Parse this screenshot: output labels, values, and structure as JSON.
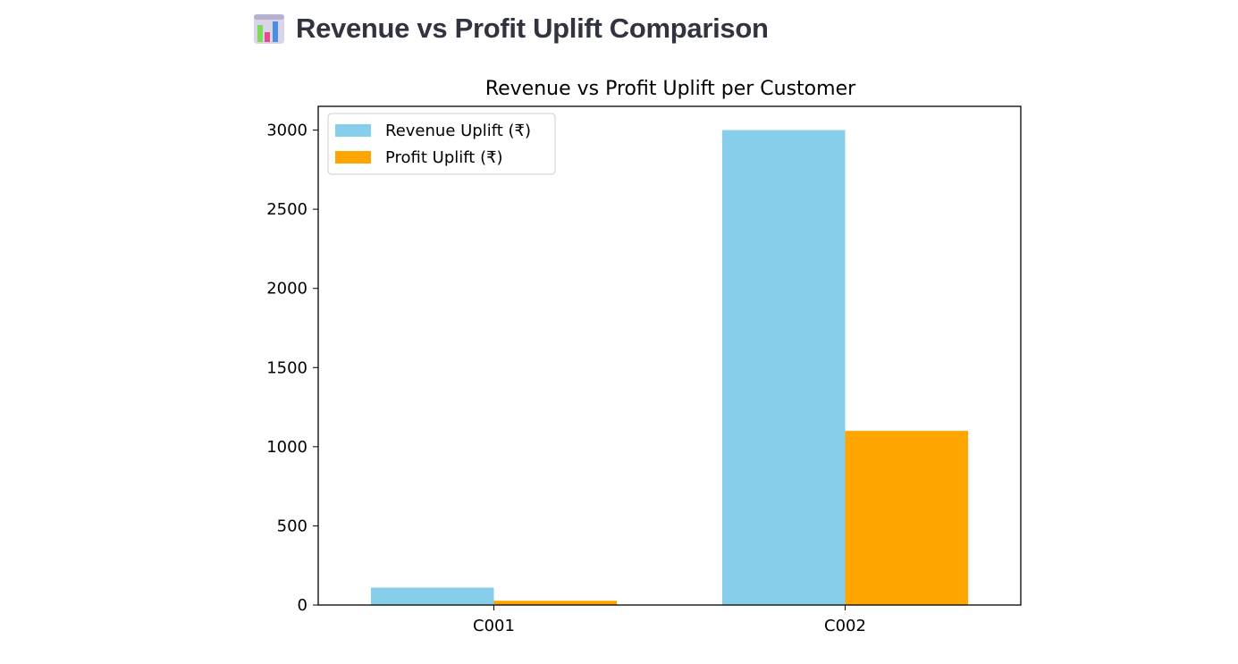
{
  "header": {
    "icon": "bar-chart-icon",
    "title": "Revenue vs Profit Uplift Comparison"
  },
  "chart_data": {
    "type": "bar",
    "title": "Revenue vs Profit Uplift per Customer",
    "xlabel": "",
    "ylabel": "",
    "categories": [
      "C001",
      "C002"
    ],
    "series": [
      {
        "name": "Revenue Uplift (₹)",
        "color": "#87ceeb",
        "values": [
          110,
          3000
        ]
      },
      {
        "name": "Profit Uplift (₹)",
        "color": "#ffa500",
        "values": [
          27,
          1100
        ]
      }
    ],
    "ylim": [
      0,
      3150
    ],
    "yticks": [
      0,
      500,
      1000,
      1500,
      2000,
      2500,
      3000
    ],
    "grid": false,
    "legend": "top-left"
  }
}
